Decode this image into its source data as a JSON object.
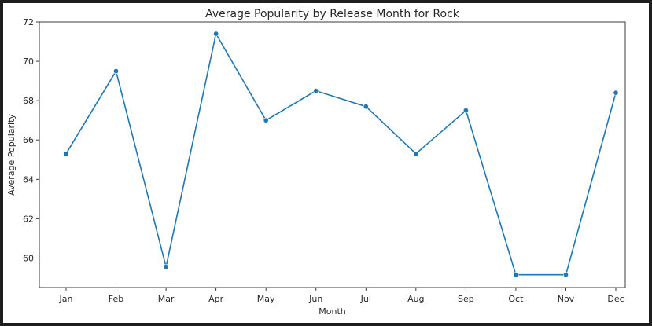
{
  "chart_data": {
    "type": "line",
    "title": "Average Popularity by Release Month for Rock",
    "xlabel": "Month",
    "ylabel": "Average Popularity",
    "categories": [
      "Jan",
      "Feb",
      "Mar",
      "Apr",
      "May",
      "Jun",
      "Jul",
      "Aug",
      "Sep",
      "Oct",
      "Nov",
      "Dec"
    ],
    "series": [
      {
        "values": [
          65.3,
          69.5,
          59.55,
          71.4,
          67.0,
          68.5,
          67.7,
          65.3,
          67.5,
          59.15,
          59.15,
          68.4
        ],
        "color": "#1f77b4"
      }
    ],
    "yticks": [
      60,
      62,
      64,
      66,
      68,
      70,
      72
    ],
    "ylim": [
      58.5,
      72.0
    ],
    "grid": false,
    "marker": "circle"
  }
}
